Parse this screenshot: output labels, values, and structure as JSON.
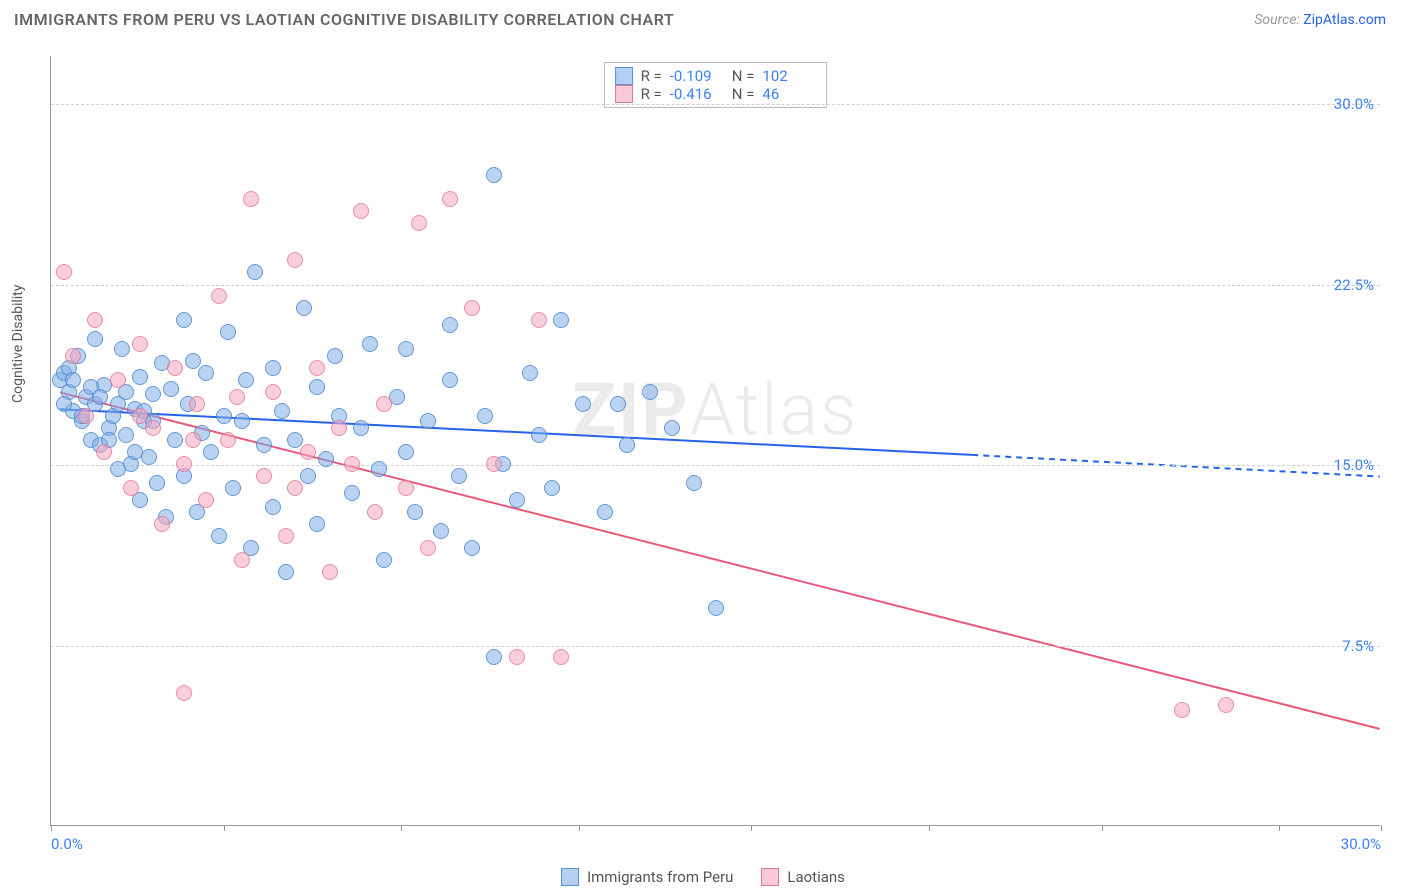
{
  "header": {
    "title": "IMMIGRANTS FROM PERU VS LAOTIAN COGNITIVE DISABILITY CORRELATION CHART",
    "source_prefix": "Source: ",
    "source_link": "ZipAtlas.com"
  },
  "chart": {
    "type": "scatter",
    "y_axis_label": "Cognitive Disability",
    "x_axis_label": "",
    "xlim": [
      0,
      30
    ],
    "ylim": [
      0,
      32
    ],
    "x_tick_positions": [
      0,
      3.9,
      7.9,
      11.9,
      15.8,
      19.8,
      23.7,
      27.7,
      30
    ],
    "x_tick_labels": {
      "0": "0.0%",
      "30": "30.0%"
    },
    "y_ticks": [
      7.5,
      15.0,
      22.5,
      30.0
    ],
    "y_tick_labels": [
      "7.5%",
      "15.0%",
      "22.5%",
      "30.0%"
    ],
    "gridline_color": "#d0d0d0",
    "background_color": "#ffffff",
    "axis_color": "#999999",
    "tick_label_color": "#3b82f6",
    "watermark_text_bold": "ZIP",
    "watermark_text_light": "Atlas",
    "marker_radius": 8,
    "series": [
      {
        "name": "Immigrants from Peru",
        "class": "blue",
        "fill": "rgba(129,175,231,0.55)",
        "stroke": "#5a8fd6",
        "R": "-0.109",
        "N": "102",
        "trend": {
          "x1": 0.2,
          "y1": 17.3,
          "x2_solid": 20.8,
          "y2_solid": 15.4,
          "x2_dash": 30,
          "y2_dash": 14.5,
          "color": "#2563eb",
          "width": 2
        },
        "points": [
          [
            0.2,
            18.5
          ],
          [
            0.3,
            18.8
          ],
          [
            0.4,
            19.0
          ],
          [
            0.4,
            18.0
          ],
          [
            0.5,
            17.2
          ],
          [
            0.6,
            19.5
          ],
          [
            0.7,
            16.8
          ],
          [
            0.8,
            17.8
          ],
          [
            0.9,
            16.0
          ],
          [
            1.0,
            17.5
          ],
          [
            1.0,
            20.2
          ],
          [
            1.1,
            15.8
          ],
          [
            1.2,
            18.3
          ],
          [
            1.3,
            16.5
          ],
          [
            1.4,
            17.0
          ],
          [
            1.5,
            14.8
          ],
          [
            1.6,
            19.8
          ],
          [
            1.7,
            16.2
          ],
          [
            1.8,
            15.0
          ],
          [
            1.9,
            17.3
          ],
          [
            2.0,
            18.6
          ],
          [
            2.0,
            13.5
          ],
          [
            2.1,
            16.8
          ],
          [
            2.2,
            15.3
          ],
          [
            2.3,
            17.9
          ],
          [
            2.4,
            14.2
          ],
          [
            2.5,
            19.2
          ],
          [
            2.6,
            12.8
          ],
          [
            2.7,
            18.1
          ],
          [
            2.8,
            16.0
          ],
          [
            3.0,
            21.0
          ],
          [
            3.0,
            14.5
          ],
          [
            3.1,
            17.5
          ],
          [
            3.2,
            19.3
          ],
          [
            3.3,
            13.0
          ],
          [
            3.4,
            16.3
          ],
          [
            3.5,
            18.8
          ],
          [
            3.6,
            15.5
          ],
          [
            3.8,
            12.0
          ],
          [
            3.9,
            17.0
          ],
          [
            4.0,
            20.5
          ],
          [
            4.1,
            14.0
          ],
          [
            4.3,
            16.8
          ],
          [
            4.4,
            18.5
          ],
          [
            4.5,
            11.5
          ],
          [
            4.6,
            23.0
          ],
          [
            4.8,
            15.8
          ],
          [
            5.0,
            19.0
          ],
          [
            5.0,
            13.2
          ],
          [
            5.2,
            17.2
          ],
          [
            5.3,
            10.5
          ],
          [
            5.5,
            16.0
          ],
          [
            5.7,
            21.5
          ],
          [
            5.8,
            14.5
          ],
          [
            6.0,
            18.2
          ],
          [
            6.0,
            12.5
          ],
          [
            6.2,
            15.2
          ],
          [
            6.4,
            19.5
          ],
          [
            6.5,
            17.0
          ],
          [
            6.8,
            13.8
          ],
          [
            7.0,
            16.5
          ],
          [
            7.2,
            20.0
          ],
          [
            7.4,
            14.8
          ],
          [
            7.5,
            11.0
          ],
          [
            7.8,
            17.8
          ],
          [
            8.0,
            15.5
          ],
          [
            8.0,
            19.8
          ],
          [
            8.2,
            13.0
          ],
          [
            8.5,
            16.8
          ],
          [
            8.8,
            12.2
          ],
          [
            9.0,
            18.5
          ],
          [
            9.0,
            20.8
          ],
          [
            9.2,
            14.5
          ],
          [
            9.5,
            11.5
          ],
          [
            9.8,
            17.0
          ],
          [
            10.0,
            27.0
          ],
          [
            10.2,
            15.0
          ],
          [
            10.5,
            13.5
          ],
          [
            10.8,
            18.8
          ],
          [
            10.0,
            7.0
          ],
          [
            11.0,
            16.2
          ],
          [
            11.3,
            14.0
          ],
          [
            11.5,
            21.0
          ],
          [
            12.0,
            17.5
          ],
          [
            12.5,
            13.0
          ],
          [
            13.0,
            15.8
          ],
          [
            13.5,
            18.0
          ],
          [
            14.0,
            16.5
          ],
          [
            14.5,
            14.2
          ],
          [
            15.0,
            9.0
          ],
          [
            0.3,
            17.5
          ],
          [
            0.5,
            18.5
          ],
          [
            0.7,
            17.0
          ],
          [
            0.9,
            18.2
          ],
          [
            1.1,
            17.8
          ],
          [
            1.3,
            16.0
          ],
          [
            1.5,
            17.5
          ],
          [
            1.7,
            18.0
          ],
          [
            1.9,
            15.5
          ],
          [
            2.1,
            17.2
          ],
          [
            2.3,
            16.8
          ],
          [
            12.8,
            17.5
          ]
        ]
      },
      {
        "name": "Laotians",
        "class": "pink",
        "fill": "rgba(244,166,188,0.55)",
        "stroke": "#d67a9a",
        "R": "-0.416",
        "N": "46",
        "trend": {
          "x1": 0.2,
          "y1": 18.0,
          "x2_solid": 30,
          "y2_solid": 4.0,
          "x2_dash": 30,
          "y2_dash": 4.0,
          "color": "#e8597b",
          "width": 2
        },
        "points": [
          [
            0.3,
            23.0
          ],
          [
            0.5,
            19.5
          ],
          [
            0.8,
            17.0
          ],
          [
            1.0,
            21.0
          ],
          [
            1.2,
            15.5
          ],
          [
            1.5,
            18.5
          ],
          [
            1.8,
            14.0
          ],
          [
            2.0,
            20.0
          ],
          [
            2.3,
            16.5
          ],
          [
            2.5,
            12.5
          ],
          [
            2.8,
            19.0
          ],
          [
            3.0,
            15.0
          ],
          [
            3.0,
            5.5
          ],
          [
            3.3,
            17.5
          ],
          [
            3.5,
            13.5
          ],
          [
            3.8,
            22.0
          ],
          [
            4.0,
            16.0
          ],
          [
            4.3,
            11.0
          ],
          [
            4.5,
            26.0
          ],
          [
            4.8,
            14.5
          ],
          [
            5.0,
            18.0
          ],
          [
            5.3,
            12.0
          ],
          [
            5.5,
            23.5
          ],
          [
            5.8,
            15.5
          ],
          [
            6.0,
            19.0
          ],
          [
            6.3,
            10.5
          ],
          [
            6.5,
            16.5
          ],
          [
            7.0,
            25.5
          ],
          [
            7.3,
            13.0
          ],
          [
            7.5,
            17.5
          ],
          [
            8.0,
            14.0
          ],
          [
            8.3,
            25.0
          ],
          [
            8.5,
            11.5
          ],
          [
            9.0,
            26.0
          ],
          [
            9.5,
            21.5
          ],
          [
            10.0,
            15.0
          ],
          [
            10.5,
            7.0
          ],
          [
            11.0,
            21.0
          ],
          [
            11.5,
            7.0
          ],
          [
            25.5,
            4.8
          ],
          [
            26.5,
            5.0
          ],
          [
            2.0,
            17.0
          ],
          [
            3.2,
            16.0
          ],
          [
            4.2,
            17.8
          ],
          [
            5.5,
            14.0
          ],
          [
            6.8,
            15.0
          ]
        ]
      }
    ],
    "legend_box": {
      "R_label": "R =",
      "N_label": "N ="
    },
    "bottom_legend": [
      {
        "swatch": "blue",
        "label": "Immigrants from Peru"
      },
      {
        "swatch": "pink",
        "label": "Laotians"
      }
    ]
  }
}
